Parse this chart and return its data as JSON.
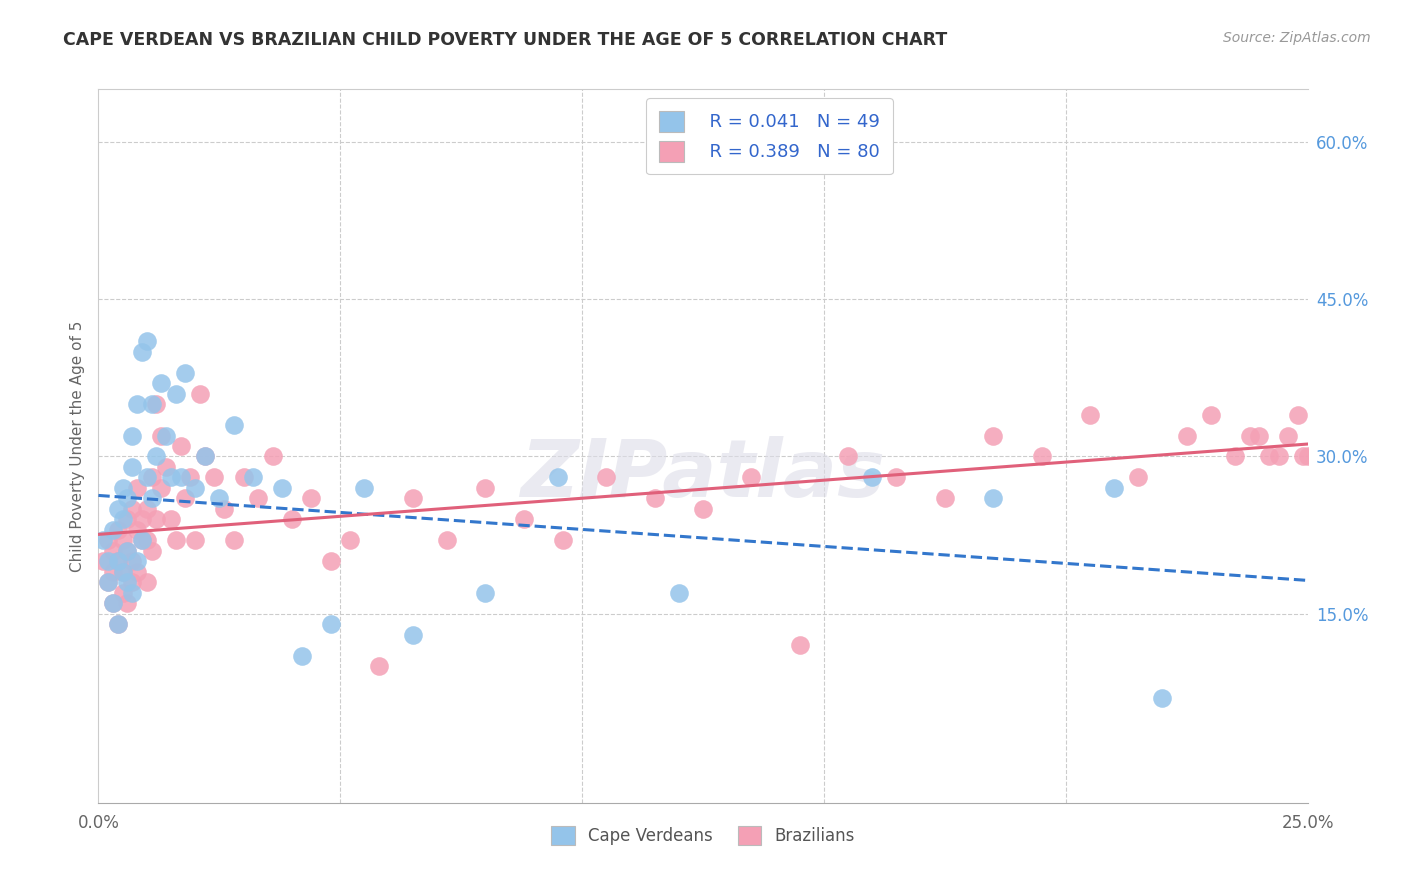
{
  "title": "CAPE VERDEAN VS BRAZILIAN CHILD POVERTY UNDER THE AGE OF 5 CORRELATION CHART",
  "source": "Source: ZipAtlas.com",
  "ylabel": "Child Poverty Under the Age of 5",
  "xlim": [
    0.0,
    0.25
  ],
  "ylim": [
    -0.03,
    0.65
  ],
  "ytick_labels_right": [
    "15.0%",
    "30.0%",
    "45.0%",
    "60.0%"
  ],
  "ytick_vals_right": [
    0.15,
    0.3,
    0.45,
    0.6
  ],
  "cv_color": "#94C4EA",
  "br_color": "#F4A0B5",
  "cv_line_color": "#3377CC",
  "br_line_color": "#E0607A",
  "legend_R_cv": "R = 0.041",
  "legend_N_cv": "N = 49",
  "legend_R_br": "R = 0.389",
  "legend_N_br": "N = 80",
  "legend_label_cv": "Cape Verdeans",
  "legend_label_br": "Brazilians",
  "watermark": "ZIPatlas",
  "background_color": "#ffffff",
  "cv_x": [
    0.001,
    0.002,
    0.002,
    0.003,
    0.003,
    0.004,
    0.004,
    0.004,
    0.005,
    0.005,
    0.005,
    0.006,
    0.006,
    0.006,
    0.007,
    0.007,
    0.007,
    0.008,
    0.008,
    0.009,
    0.009,
    0.01,
    0.01,
    0.011,
    0.011,
    0.012,
    0.013,
    0.014,
    0.015,
    0.016,
    0.017,
    0.018,
    0.02,
    0.022,
    0.025,
    0.028,
    0.032,
    0.038,
    0.042,
    0.048,
    0.055,
    0.065,
    0.08,
    0.095,
    0.12,
    0.16,
    0.185,
    0.21,
    0.22
  ],
  "cv_y": [
    0.22,
    0.18,
    0.2,
    0.16,
    0.23,
    0.14,
    0.2,
    0.25,
    0.19,
    0.24,
    0.27,
    0.21,
    0.18,
    0.26,
    0.17,
    0.29,
    0.32,
    0.2,
    0.35,
    0.22,
    0.4,
    0.28,
    0.41,
    0.26,
    0.35,
    0.3,
    0.37,
    0.32,
    0.28,
    0.36,
    0.28,
    0.38,
    0.27,
    0.3,
    0.26,
    0.33,
    0.28,
    0.27,
    0.11,
    0.14,
    0.27,
    0.13,
    0.17,
    0.28,
    0.17,
    0.28,
    0.26,
    0.27,
    0.07
  ],
  "br_x": [
    0.001,
    0.002,
    0.002,
    0.003,
    0.003,
    0.003,
    0.004,
    0.004,
    0.004,
    0.005,
    0.005,
    0.005,
    0.006,
    0.006,
    0.006,
    0.007,
    0.007,
    0.007,
    0.008,
    0.008,
    0.008,
    0.009,
    0.009,
    0.01,
    0.01,
    0.01,
    0.011,
    0.011,
    0.012,
    0.012,
    0.013,
    0.013,
    0.014,
    0.015,
    0.016,
    0.017,
    0.018,
    0.019,
    0.02,
    0.021,
    0.022,
    0.024,
    0.026,
    0.028,
    0.03,
    0.033,
    0.036,
    0.04,
    0.044,
    0.048,
    0.052,
    0.058,
    0.065,
    0.072,
    0.08,
    0.088,
    0.096,
    0.105,
    0.115,
    0.125,
    0.135,
    0.145,
    0.155,
    0.165,
    0.175,
    0.185,
    0.195,
    0.205,
    0.215,
    0.225,
    0.23,
    0.235,
    0.238,
    0.24,
    0.242,
    0.244,
    0.246,
    0.248,
    0.249,
    0.25
  ],
  "br_y": [
    0.2,
    0.18,
    0.22,
    0.16,
    0.21,
    0.19,
    0.14,
    0.23,
    0.2,
    0.17,
    0.22,
    0.19,
    0.16,
    0.24,
    0.21,
    0.18,
    0.25,
    0.2,
    0.23,
    0.19,
    0.27,
    0.22,
    0.24,
    0.18,
    0.25,
    0.22,
    0.28,
    0.21,
    0.35,
    0.24,
    0.32,
    0.27,
    0.29,
    0.24,
    0.22,
    0.31,
    0.26,
    0.28,
    0.22,
    0.36,
    0.3,
    0.28,
    0.25,
    0.22,
    0.28,
    0.26,
    0.3,
    0.24,
    0.26,
    0.2,
    0.22,
    0.1,
    0.26,
    0.22,
    0.27,
    0.24,
    0.22,
    0.28,
    0.26,
    0.25,
    0.28,
    0.12,
    0.3,
    0.28,
    0.26,
    0.32,
    0.3,
    0.34,
    0.28,
    0.32,
    0.34,
    0.3,
    0.32,
    0.32,
    0.3,
    0.3,
    0.32,
    0.34,
    0.3,
    0.3
  ]
}
